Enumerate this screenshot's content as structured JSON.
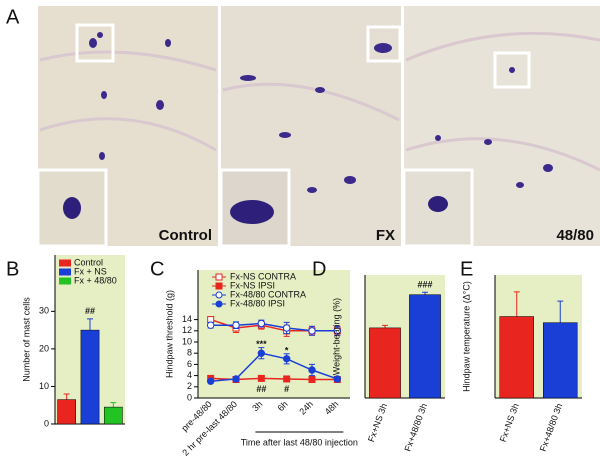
{
  "panel_a": {
    "label": "A",
    "captions": [
      "Control",
      "FX",
      "48/80"
    ]
  },
  "chart_data": [
    {
      "type": "bar",
      "label": "B",
      "y_label": "Number of mast cells",
      "categories": [
        "Control",
        "Fx + NS",
        "Fx + 48/80"
      ],
      "colors": [
        "#e8261f",
        "#1a3fd6",
        "#22c322"
      ],
      "values": [
        6.5,
        25,
        4.5
      ],
      "errors": [
        1.5,
        3,
        1.2
      ],
      "annotations": [
        null,
        "##",
        null
      ],
      "ylim": [
        0,
        45
      ],
      "yticks": [
        0,
        10,
        20,
        30
      ],
      "legend": "top-left",
      "show_categories": false
    },
    {
      "type": "line",
      "label": "C",
      "y_label": "Hindpaw threshold (g)",
      "x_group_label": "Time after last 48/80 injection",
      "categories": [
        "pre-48/80",
        "2 hr pre-last 48/80",
        "3h",
        "6h",
        "24h",
        "48h"
      ],
      "series": [
        {
          "name": "Fx-NS CONTRA",
          "color": "#e8261f",
          "marker": "square",
          "filled": false,
          "values": [
            14,
            12.5,
            13,
            12,
            12,
            12
          ],
          "errors": [
            0.5,
            0.8,
            0.7,
            1,
            0.8,
            0.8
          ]
        },
        {
          "name": "Fx-NS IPSI",
          "color": "#e8261f",
          "marker": "square",
          "filled": true,
          "values": [
            3.5,
            3.3,
            3.5,
            3.4,
            3.3,
            3.3
          ],
          "errors": [
            0.5,
            0.4,
            0.4,
            0.4,
            0.3,
            0.3
          ]
        },
        {
          "name": "Fx-48/80 CONTRA",
          "color": "#1a3fd6",
          "marker": "circle",
          "filled": false,
          "values": [
            13,
            13,
            13.3,
            12.5,
            12,
            12
          ],
          "errors": [
            0.5,
            0.6,
            0.6,
            1,
            0.8,
            0.8
          ]
        },
        {
          "name": "Fx-48/80 IPSI",
          "color": "#1a3fd6",
          "marker": "circle",
          "filled": true,
          "values": [
            3,
            3.4,
            8,
            7,
            5,
            3.4
          ],
          "errors": [
            0.3,
            0.4,
            1,
            0.9,
            1,
            0.4
          ]
        }
      ],
      "annotations": [
        {
          "text": "***",
          "category": 2,
          "value": 9.5
        },
        {
          "text": "*",
          "category": 3,
          "value": 8.4
        },
        {
          "text": "##",
          "category": 2,
          "value": 1.5
        },
        {
          "text": "#",
          "category": 3,
          "value": 1.5
        }
      ],
      "ylim": [
        0,
        15
      ],
      "yticks": [
        0,
        2,
        4,
        6,
        8,
        10,
        12,
        14
      ],
      "legend": "top"
    },
    {
      "type": "bar",
      "label": "D",
      "y_label": "Weight-bearing (%)",
      "categories": [
        "Fx+NS 3h",
        "Fx+48/80 3h"
      ],
      "colors": [
        "#e8261f",
        "#1a3fd6"
      ],
      "values": [
        57,
        84
      ],
      "errors": [
        2,
        2
      ],
      "annotations": [
        null,
        "###"
      ],
      "ylim": [
        0,
        100
      ],
      "show_categories": true
    },
    {
      "type": "bar",
      "label": "E",
      "y_label": "Hindpaw temperature (Δ°C)",
      "categories": [
        "Fx+NS 3h",
        "Fx+48/80 3h"
      ],
      "colors": [
        "#e8261f",
        "#1a3fd6"
      ],
      "values": [
        2.65,
        2.45
      ],
      "errors": [
        0.8,
        0.7
      ],
      "annotations": [
        null,
        null
      ],
      "ylim": [
        0,
        4
      ],
      "show_categories": true
    }
  ]
}
